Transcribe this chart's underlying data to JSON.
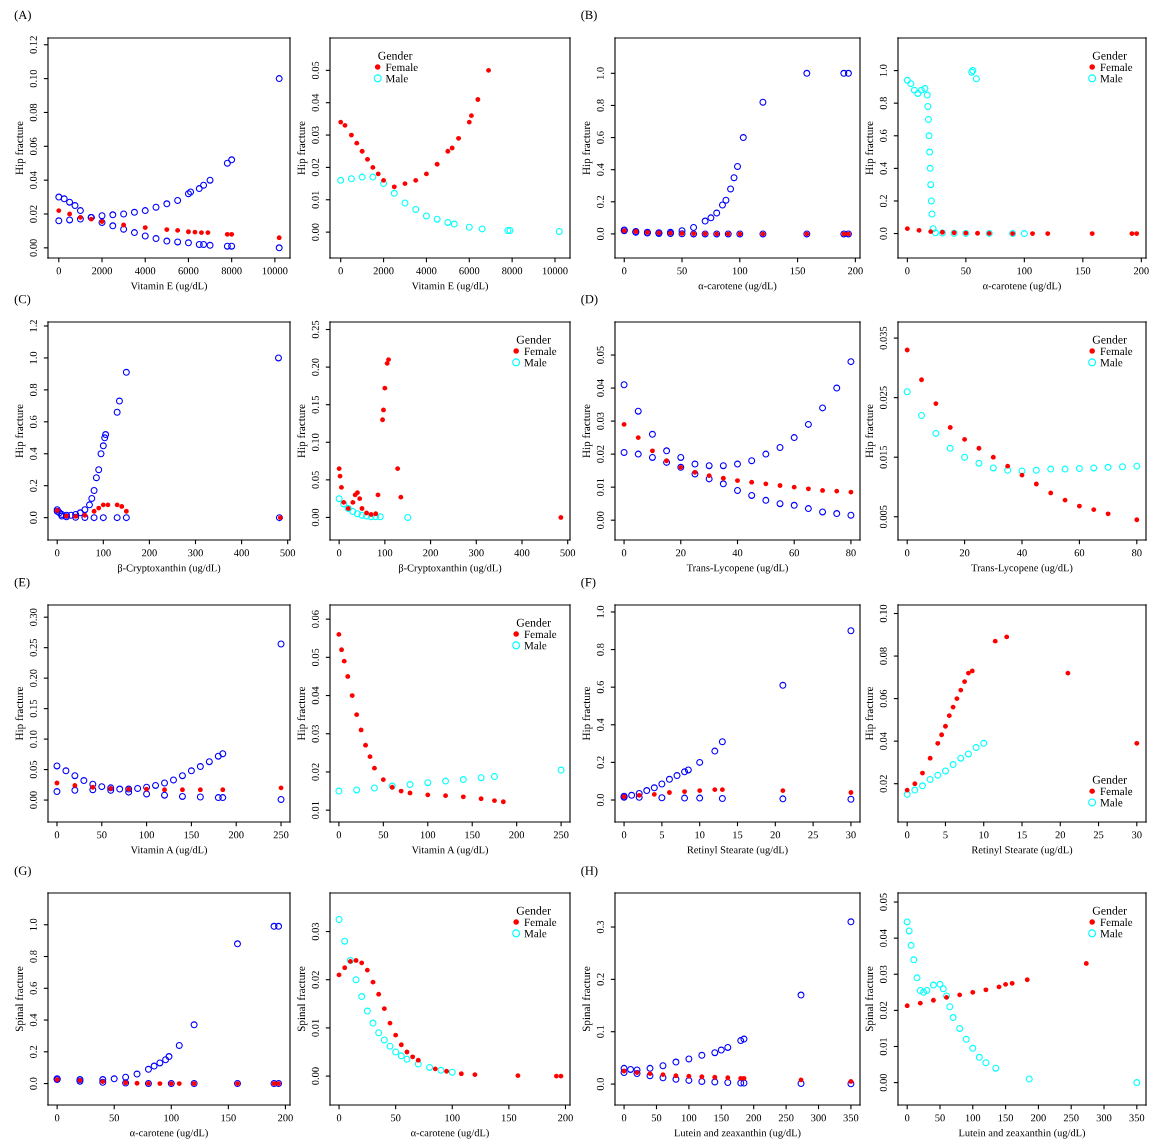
{
  "chart_data": [
    {
      "type": "scatter",
      "annotations": [
        "(A)"
      ],
      "xlabel": "Vitamin E (ug/dL)",
      "ylabel": "Hip fracture",
      "xlim": [
        -500,
        10700
      ],
      "xticks": [
        0,
        2000,
        4000,
        6000,
        8000,
        10000
      ],
      "ylim": [
        -0.006,
        0.124
      ],
      "yticks": [
        {
          "value": 0,
          "label": "0.00"
        },
        0.02,
        0.04,
        0.06,
        0.08,
        {
          "value": 0.1,
          "label": "0.10"
        },
        {
          "value": 0.12,
          "label": "0.12"
        }
      ],
      "marker": "circle",
      "legend": false,
      "series": [
        {
          "color": "#ff0000",
          "x": [
            0,
            500,
            1000,
            1500,
            2000,
            3000,
            4000,
            5000,
            5500,
            6000,
            6300,
            6600,
            6900,
            7800,
            8000,
            10200
          ],
          "values": [
            0.022,
            0.02,
            0.018,
            0.017,
            0.0155,
            0.0135,
            0.012,
            0.0108,
            0.0103,
            0.0095,
            0.0093,
            0.009,
            0.009,
            0.008,
            0.008,
            0.006
          ]
        },
        {
          "color": "#0000ff",
          "x": [
            0,
            500,
            1000,
            1500,
            2000,
            2500,
            3000,
            3500,
            4000,
            4500,
            5000,
            5500,
            6000,
            6100,
            6500,
            6700,
            7000,
            7800,
            8000,
            10200
          ],
          "values": [
            0.016,
            0.0165,
            0.017,
            0.018,
            0.019,
            0.0195,
            0.02,
            0.021,
            0.022,
            0.024,
            0.026,
            0.028,
            0.032,
            0.033,
            0.035,
            0.037,
            0.04,
            0.05,
            0.052,
            0.1
          ]
        },
        {
          "color": "#0000ff",
          "x": [
            0,
            250,
            500,
            750,
            1000,
            1500,
            2000,
            2500,
            3000,
            3500,
            4000,
            4500,
            5000,
            5500,
            6000,
            6500,
            6700,
            7000,
            7800,
            8000,
            10200
          ],
          "values": [
            0.03,
            0.029,
            0.027,
            0.025,
            0.022,
            0.018,
            0.015,
            0.013,
            0.011,
            0.009,
            0.007,
            0.0055,
            0.004,
            0.0035,
            0.003,
            0.002,
            0.002,
            0.0015,
            0.001,
            0.001,
            0.0
          ]
        }
      ]
    },
    {
      "type": "scatter",
      "xlabel": "Vitamin E (ug/dL)",
      "ylabel": "Hip fracture",
      "xlim": [
        -500,
        10700
      ],
      "xticks": [
        0,
        2000,
        4000,
        6000,
        8000,
        10000
      ],
      "ylim": [
        -0.008,
        0.06
      ],
      "yticks": [
        {
          "value": 0,
          "label": "0.00"
        },
        0.01,
        0.02,
        0.03,
        0.04,
        0.05
      ],
      "marker": "circle",
      "legend": "top left",
      "legend_title": "Gender",
      "series": [
        {
          "name": "Female",
          "color": "#ff0000",
          "x": [
            0,
            200,
            500,
            750,
            1000,
            1250,
            1500,
            1750,
            2000,
            2500,
            3000,
            3500,
            4000,
            4500,
            5000,
            5200,
            5500,
            6000,
            6100,
            6400,
            6900
          ],
          "values": [
            0.034,
            0.033,
            0.03,
            0.0275,
            0.025,
            0.0225,
            0.02,
            0.018,
            0.016,
            0.014,
            0.015,
            0.016,
            0.018,
            0.021,
            0.025,
            0.026,
            0.029,
            0.034,
            0.036,
            0.041,
            0.05
          ]
        },
        {
          "name": "Male",
          "color": "#00ffff",
          "x": [
            0,
            500,
            1000,
            1500,
            2000,
            2500,
            3000,
            3500,
            4000,
            4500,
            5000,
            5300,
            6000,
            6600,
            7800,
            7900,
            10200
          ],
          "values": [
            0.016,
            0.0165,
            0.017,
            0.017,
            0.015,
            0.012,
            0.009,
            0.007,
            0.005,
            0.004,
            0.003,
            0.0025,
            0.0015,
            0.001,
            0.0005,
            0.0005,
            0.0002
          ]
        }
      ]
    },
    {
      "type": "scatter",
      "annotations": [
        "(B)"
      ],
      "xlabel": "α-carotene (ug/dL)",
      "ylabel": "Hip fracture",
      "xlim": [
        -8,
        204
      ],
      "xticks": [
        0,
        50,
        100,
        150,
        200
      ],
      "ylim": [
        -0.15,
        1.22
      ],
      "yticks": [
        {
          "value": 0,
          "label": "0.0"
        },
        0.2,
        0.4,
        0.6,
        0.8,
        {
          "value": 1,
          "label": "1.0"
        }
      ],
      "marker": "circle",
      "legend": false,
      "series": [
        {
          "color": "#ff0000",
          "x": [
            0,
            10,
            20,
            30,
            40,
            50,
            60,
            70,
            80,
            90,
            100,
            120,
            158,
            190,
            194
          ],
          "values": [
            0.02,
            0.015,
            0.01,
            0.007,
            0.005,
            0.003,
            0.002,
            0.001,
            0.0,
            0.0,
            0.0,
            0.0,
            0.0,
            0.0,
            0.0
          ]
        },
        {
          "color": "#0000ff",
          "x": [
            0,
            10,
            20,
            30,
            40,
            50,
            60,
            70,
            75,
            80,
            85,
            88,
            92,
            95,
            98,
            103,
            120,
            158,
            190,
            194
          ],
          "values": [
            0.025,
            0.015,
            0.01,
            0.008,
            0.01,
            0.02,
            0.04,
            0.08,
            0.1,
            0.13,
            0.18,
            0.21,
            0.28,
            0.35,
            0.42,
            0.6,
            0.82,
            1.0,
            1.0,
            1.0
          ]
        },
        {
          "color": "#0000ff",
          "x": [
            0,
            10,
            20,
            30,
            40,
            50,
            60,
            70,
            80,
            90,
            100,
            120,
            158,
            190,
            194
          ],
          "values": [
            0.02,
            0.01,
            0.006,
            0.003,
            0.002,
            0.001,
            0.0,
            0.0,
            0.0,
            0.0,
            0.0,
            0.0,
            0.0,
            0.0,
            0.0
          ]
        }
      ]
    },
    {
      "type": "scatter",
      "xlabel": "α-carotene (ug/dL)",
      "ylabel": "Hip fracture",
      "xlim": [
        -8,
        204
      ],
      "xticks": [
        0,
        50,
        100,
        150,
        200
      ],
      "ylim": [
        -0.15,
        1.2
      ],
      "yticks": [
        {
          "value": 0,
          "label": "0.0"
        },
        0.2,
        0.4,
        0.6,
        0.8,
        {
          "value": 1,
          "label": "1.0"
        }
      ],
      "marker": "circle",
      "legend": "top right",
      "legend_title": "Gender",
      "series": [
        {
          "name": "Female",
          "color": "#ff0000",
          "x": [
            0,
            10,
            20,
            30,
            40,
            50,
            60,
            70,
            90,
            107,
            120,
            158,
            192,
            196
          ],
          "values": [
            0.03,
            0.02,
            0.012,
            0.008,
            0.005,
            0.003,
            0.002,
            0.001,
            0.0,
            0.0,
            0.0,
            0.0,
            0.0,
            0.0
          ]
        },
        {
          "name": "Male",
          "color": "#00ffff",
          "x": [
            0,
            3,
            6,
            9,
            12,
            15,
            17,
            17.5,
            18,
            18.5,
            19,
            19.5,
            20,
            20.5,
            21,
            22,
            24,
            30,
            40,
            50,
            55,
            56,
            59,
            70,
            90,
            100
          ],
          "values": [
            0.94,
            0.92,
            0.88,
            0.86,
            0.88,
            0.89,
            0.85,
            0.78,
            0.7,
            0.6,
            0.5,
            0.4,
            0.3,
            0.2,
            0.12,
            0.03,
            0.005,
            0.003,
            0.002,
            0.001,
            0.99,
            1.0,
            0.95,
            0.001,
            0.0,
            0.0
          ]
        }
      ]
    },
    {
      "type": "scatter",
      "annotations": [
        "(C)"
      ],
      "xlabel": "β-Cryptoxanthin (ug/dL)",
      "ylabel": "Hip fracture",
      "xlim": [
        -20,
        505
      ],
      "xticks": [
        0,
        100,
        200,
        300,
        400,
        500
      ],
      "ylim": [
        -0.14,
        1.225
      ],
      "yticks": [
        {
          "value": 0,
          "label": "0.0"
        },
        0.2,
        0.4,
        0.6,
        0.8,
        {
          "value": 1,
          "label": "1.0"
        },
        1.2
      ],
      "marker": "circle",
      "legend": false,
      "series": [
        {
          "color": "#ff0000",
          "x": [
            0,
            20,
            40,
            60,
            80,
            90,
            100,
            110,
            130,
            140,
            150,
            484
          ],
          "values": [
            0.045,
            0.01,
            0.008,
            0.015,
            0.04,
            0.06,
            0.08,
            0.08,
            0.08,
            0.07,
            0.04,
            0.0
          ]
        },
        {
          "color": "#0000ff",
          "x": [
            0,
            5,
            10,
            20,
            30,
            40,
            50,
            60,
            70,
            75,
            80,
            85,
            90,
            95,
            100,
            103,
            105,
            130,
            135,
            150,
            480
          ],
          "values": [
            0.05,
            0.03,
            0.02,
            0.015,
            0.015,
            0.02,
            0.03,
            0.05,
            0.08,
            0.12,
            0.17,
            0.25,
            0.3,
            0.4,
            0.45,
            0.5,
            0.52,
            0.66,
            0.73,
            0.91,
            1.0
          ]
        },
        {
          "color": "#0000ff",
          "x": [
            0,
            10,
            20,
            40,
            60,
            80,
            100,
            130,
            150,
            482
          ],
          "values": [
            0.04,
            0.01,
            0.005,
            0.002,
            0.001,
            0.0,
            0.0,
            0.0,
            0.0,
            0.0
          ]
        }
      ]
    },
    {
      "type": "scatter",
      "xlabel": "β-Cryptoxanthin (ug/dL)",
      "ylabel": "Hip fracture",
      "xlim": [
        -20,
        505
      ],
      "xticks": [
        0,
        100,
        200,
        300,
        400,
        500
      ],
      "ylim": [
        -0.03,
        0.26
      ],
      "yticks": [
        {
          "value": 0,
          "label": "0.00"
        },
        0.05,
        {
          "value": 0.1,
          "label": "0.10"
        },
        0.15,
        {
          "value": 0.2,
          "label": "0.20"
        },
        0.25
      ],
      "marker": "circle",
      "legend": "top right",
      "legend_title": "Gender",
      "series": [
        {
          "name": "Female",
          "color": "#ff0000",
          "x": [
            0,
            2,
            5,
            10,
            20,
            30,
            35,
            40,
            45,
            50,
            60,
            70,
            80,
            85,
            95,
            97,
            100,
            105,
            108,
            128,
            135,
            485
          ],
          "values": [
            0.065,
            0.055,
            0.04,
            0.02,
            0.012,
            0.02,
            0.03,
            0.033,
            0.025,
            0.012,
            0.006,
            0.004,
            0.005,
            0.03,
            0.13,
            0.143,
            0.172,
            0.205,
            0.21,
            0.065,
            0.027,
            0.0
          ]
        },
        {
          "name": "Male",
          "color": "#00ffff",
          "x": [
            0,
            10,
            20,
            30,
            40,
            50,
            60,
            70,
            80,
            90,
            150
          ],
          "values": [
            0.025,
            0.018,
            0.012,
            0.008,
            0.005,
            0.003,
            0.002,
            0.001,
            0.001,
            0.001,
            0.0
          ]
        }
      ]
    },
    {
      "type": "scatter",
      "annotations": [
        "(D)"
      ],
      "xlabel": "Trans-Lycopene (ug/dL)",
      "ylabel": "Hip fracture",
      "xlim": [
        -3.2,
        83.2
      ],
      "xticks": [
        0,
        20,
        40,
        60,
        80
      ],
      "ylim": [
        -0.006,
        0.06
      ],
      "yticks": [
        {
          "value": 0,
          "label": "0.00"
        },
        0.01,
        0.02,
        0.03,
        0.04,
        0.05
      ],
      "marker": "circle",
      "legend": false,
      "series": [
        {
          "color": "#ff0000",
          "x": [
            0,
            5,
            10,
            15,
            20,
            25,
            30,
            35,
            40,
            45,
            50,
            55,
            60,
            65,
            70,
            75,
            80
          ],
          "values": [
            0.029,
            0.025,
            0.021,
            0.018,
            0.016,
            0.0145,
            0.0135,
            0.0127,
            0.012,
            0.0115,
            0.011,
            0.0105,
            0.01,
            0.0095,
            0.009,
            0.0088,
            0.0085
          ]
        },
        {
          "color": "#0000ff",
          "x": [
            0,
            5,
            10,
            15,
            20,
            25,
            30,
            35,
            40,
            45,
            50,
            55,
            60,
            65,
            70,
            75,
            80
          ],
          "values": [
            0.041,
            0.033,
            0.026,
            0.021,
            0.019,
            0.017,
            0.0165,
            0.0165,
            0.017,
            0.018,
            0.02,
            0.022,
            0.025,
            0.029,
            0.034,
            0.04,
            0.048
          ]
        },
        {
          "color": "#0000ff",
          "x": [
            0,
            5,
            10,
            15,
            20,
            25,
            30,
            35,
            40,
            45,
            50,
            55,
            60,
            65,
            70,
            75,
            80
          ],
          "values": [
            0.0205,
            0.02,
            0.019,
            0.0175,
            0.016,
            0.014,
            0.0125,
            0.011,
            0.009,
            0.0075,
            0.006,
            0.005,
            0.0045,
            0.0035,
            0.0025,
            0.002,
            0.0015
          ]
        }
      ]
    },
    {
      "type": "scatter",
      "xlabel": "Trans-Lycopene (ug/dL)",
      "ylabel": "Hip fracture",
      "xlim": [
        -3.2,
        83.2
      ],
      "xticks": [
        0,
        20,
        40,
        60,
        80
      ],
      "ylim": [
        0.0011,
        0.0377
      ],
      "yticks": [
        0.005,
        0.015,
        0.025,
        0.035
      ],
      "marker": "circle",
      "legend": "top right",
      "legend_title": "Gender",
      "series": [
        {
          "name": "Female",
          "color": "#ff0000",
          "x": [
            0,
            5,
            10,
            15,
            20,
            25,
            30,
            35,
            40,
            45,
            50,
            55,
            60,
            65,
            70,
            80
          ],
          "values": [
            0.033,
            0.028,
            0.024,
            0.02,
            0.018,
            0.0165,
            0.015,
            0.0135,
            0.012,
            0.0105,
            0.009,
            0.0078,
            0.0068,
            0.0062,
            0.0055,
            0.0045
          ]
        },
        {
          "name": "Male",
          "color": "#00ffff",
          "x": [
            0,
            5,
            10,
            15,
            20,
            25,
            30,
            35,
            40,
            45,
            50,
            55,
            60,
            65,
            70,
            75,
            80
          ],
          "values": [
            0.026,
            0.022,
            0.019,
            0.0165,
            0.015,
            0.014,
            0.0132,
            0.0128,
            0.0127,
            0.0128,
            0.013,
            0.013,
            0.0131,
            0.0132,
            0.0133,
            0.0134,
            0.0135
          ]
        }
      ]
    },
    {
      "type": "scatter",
      "annotations": [
        "(E)"
      ],
      "xlabel": "Vitamin A (ug/dL)",
      "ylabel": "Hip fracture",
      "xlim": [
        -10,
        260
      ],
      "xticks": [
        0,
        50,
        100,
        150,
        200,
        250
      ],
      "ylim": [
        -0.036,
        0.32
      ],
      "yticks": [
        {
          "value": 0,
          "label": "0.00"
        },
        0.05,
        {
          "value": 0.1,
          "label": "0.10"
        },
        0.15,
        {
          "value": 0.2,
          "label": "0.20"
        },
        0.25,
        {
          "value": 0.3,
          "label": "0.30"
        }
      ],
      "marker": "circle",
      "legend": false,
      "series": [
        {
          "color": "#ff0000",
          "x": [
            0,
            20,
            40,
            60,
            80,
            100,
            120,
            140,
            160,
            185,
            250
          ],
          "values": [
            0.028,
            0.024,
            0.021,
            0.019,
            0.018,
            0.018,
            0.017,
            0.017,
            0.017,
            0.017,
            0.02
          ]
        },
        {
          "color": "#0000ff",
          "x": [
            0,
            10,
            20,
            30,
            40,
            50,
            60,
            70,
            80,
            90,
            100,
            110,
            120,
            130,
            140,
            150,
            160,
            170,
            180,
            185,
            250
          ],
          "values": [
            0.056,
            0.048,
            0.04,
            0.032,
            0.026,
            0.022,
            0.02,
            0.018,
            0.018,
            0.019,
            0.021,
            0.024,
            0.028,
            0.033,
            0.04,
            0.048,
            0.055,
            0.063,
            0.072,
            0.076,
            0.256
          ]
        },
        {
          "color": "#0000ff",
          "x": [
            0,
            20,
            40,
            60,
            80,
            100,
            120,
            140,
            160,
            180,
            185,
            250
          ],
          "values": [
            0.014,
            0.016,
            0.017,
            0.016,
            0.013,
            0.01,
            0.008,
            0.006,
            0.005,
            0.004,
            0.004,
            0.001
          ]
        }
      ]
    },
    {
      "type": "scatter",
      "xlabel": "Vitamin A (ug/dL)",
      "ylabel": "Hip fracture",
      "xlim": [
        -10,
        260
      ],
      "xticks": [
        0,
        50,
        100,
        150,
        200,
        250
      ],
      "ylim": [
        0.0069,
        0.0637
      ],
      "yticks": [
        0.01,
        0.02,
        0.03,
        0.04,
        0.05,
        0.06
      ],
      "marker": "circle",
      "legend": "top right",
      "legend_title": "Gender",
      "series": [
        {
          "name": "Female",
          "color": "#ff0000",
          "x": [
            0,
            3,
            6,
            10,
            15,
            20,
            25,
            30,
            35,
            40,
            50,
            60,
            70,
            80,
            100,
            120,
            140,
            160,
            175,
            185
          ],
          "values": [
            0.056,
            0.052,
            0.049,
            0.045,
            0.04,
            0.035,
            0.031,
            0.027,
            0.024,
            0.021,
            0.018,
            0.016,
            0.015,
            0.0145,
            0.014,
            0.0138,
            0.0135,
            0.013,
            0.0125,
            0.0122
          ]
        },
        {
          "name": "Male",
          "color": "#00ffff",
          "x": [
            0,
            20,
            40,
            60,
            80,
            100,
            120,
            140,
            160,
            175,
            250
          ],
          "values": [
            0.015,
            0.0153,
            0.0158,
            0.0163,
            0.0167,
            0.0172,
            0.0176,
            0.018,
            0.0185,
            0.0188,
            0.0205
          ]
        }
      ]
    },
    {
      "type": "scatter",
      "annotations": [
        "(F)"
      ],
      "xlabel": "Retinyl Stearate (ug/dL)",
      "ylabel": "Hip fracture",
      "xlim": [
        -1.2,
        31.2
      ],
      "xticks": [
        0,
        5,
        10,
        15,
        20,
        25,
        30
      ],
      "ylim": [
        -0.117,
        1.037
      ],
      "yticks": [
        {
          "value": 0,
          "label": "0.0"
        },
        0.2,
        0.4,
        0.6,
        0.8,
        {
          "value": 1,
          "label": "1.0"
        }
      ],
      "marker": "circle",
      "legend": false,
      "series": [
        {
          "color": "#ff0000",
          "x": [
            0,
            2,
            4,
            6,
            8,
            10,
            12,
            13,
            21,
            30
          ],
          "values": [
            0.018,
            0.025,
            0.03,
            0.04,
            0.045,
            0.05,
            0.055,
            0.055,
            0.05,
            0.04
          ]
        },
        {
          "color": "#0000ff",
          "x": [
            0,
            1,
            2,
            3,
            4,
            5,
            6,
            7,
            8,
            8.5,
            10,
            12,
            13,
            21,
            30
          ],
          "values": [
            0.02,
            0.025,
            0.035,
            0.05,
            0.065,
            0.085,
            0.11,
            0.13,
            0.15,
            0.16,
            0.2,
            0.26,
            0.31,
            0.61,
            0.9
          ]
        },
        {
          "color": "#0000ff",
          "x": [
            0,
            2,
            5,
            8,
            10,
            13,
            21,
            30
          ],
          "values": [
            0.015,
            0.014,
            0.012,
            0.01,
            0.01,
            0.008,
            0.006,
            0.004
          ]
        }
      ]
    },
    {
      "type": "scatter",
      "xlabel": "Retinyl Stearate (ug/dL)",
      "ylabel": "Hip fracture",
      "xlim": [
        -1.2,
        31.2
      ],
      "xticks": [
        0,
        5,
        10,
        15,
        20,
        25,
        30
      ],
      "ylim": [
        0.002,
        0.104
      ],
      "yticks": [
        0.02,
        0.04,
        0.06,
        0.08,
        {
          "value": 0.1,
          "label": "0.10"
        }
      ],
      "marker": "circle",
      "legend": "bottom right",
      "legend_title": "Gender",
      "series": [
        {
          "name": "Female",
          "color": "#ff0000",
          "x": [
            0,
            1,
            2,
            3,
            4,
            4.5,
            5,
            5.5,
            6,
            6.5,
            7,
            7.5,
            8,
            8.5,
            11.5,
            13,
            21,
            30
          ],
          "values": [
            0.017,
            0.02,
            0.025,
            0.032,
            0.039,
            0.043,
            0.047,
            0.052,
            0.056,
            0.06,
            0.064,
            0.068,
            0.072,
            0.073,
            0.087,
            0.089,
            0.072,
            0.039
          ]
        },
        {
          "name": "Male",
          "color": "#00ffff",
          "x": [
            0,
            1,
            2,
            3,
            4,
            5,
            6,
            7,
            8,
            9,
            10
          ],
          "values": [
            0.015,
            0.017,
            0.019,
            0.022,
            0.024,
            0.026,
            0.029,
            0.032,
            0.034,
            0.037,
            0.039
          ]
        }
      ]
    },
    {
      "type": "scatter",
      "annotations": [
        "(G)"
      ],
      "xlabel": "α-carotene (ug/dL)",
      "ylabel": "Spinal fracture",
      "xlim": [
        -8,
        204
      ],
      "xticks": [
        0,
        50,
        100,
        150,
        200
      ],
      "ylim": [
        -0.135,
        1.2
      ],
      "yticks": [
        {
          "value": 0,
          "label": "0.0"
        },
        0.2,
        0.4,
        0.6,
        0.8,
        {
          "value": 1,
          "label": "1.0"
        }
      ],
      "marker": "circle",
      "legend": false,
      "series": [
        {
          "color": "#ff0000",
          "x": [
            0,
            20,
            40,
            60,
            70,
            80,
            90,
            100,
            107,
            120,
            158,
            190,
            194
          ],
          "values": [
            0.025,
            0.02,
            0.012,
            0.005,
            0.002,
            0.001,
            0.0,
            0.0,
            0.0,
            0.0,
            0.0,
            0.0,
            0.0
          ]
        },
        {
          "color": "#0000ff",
          "x": [
            0,
            20,
            40,
            50,
            60,
            70,
            80,
            85,
            90,
            95,
            98,
            107,
            120,
            158,
            190,
            194
          ],
          "values": [
            0.03,
            0.025,
            0.025,
            0.03,
            0.04,
            0.06,
            0.09,
            0.11,
            0.13,
            0.15,
            0.17,
            0.24,
            0.37,
            0.88,
            0.99,
            0.99
          ]
        },
        {
          "color": "#0000ff",
          "x": [
            0,
            20,
            40,
            60,
            80,
            100,
            120,
            158,
            190,
            194
          ],
          "values": [
            0.025,
            0.015,
            0.008,
            0.003,
            0.001,
            0.0,
            0.0,
            0.0,
            0.0,
            0.0
          ]
        }
      ]
    },
    {
      "type": "scatter",
      "xlabel": "α-carotene (ug/dL)",
      "ylabel": "Spinal fracture",
      "xlim": [
        -8,
        204
      ],
      "xticks": [
        0,
        50,
        100,
        150,
        200
      ],
      "ylim": [
        -0.006,
        0.038
      ],
      "yticks": [
        {
          "value": 0,
          "label": "0.00"
        },
        0.01,
        0.02,
        0.03
      ],
      "marker": "circle",
      "legend": "top right",
      "legend_title": "Gender",
      "series": [
        {
          "name": "Female",
          "color": "#ff0000",
          "x": [
            0,
            5,
            10,
            15,
            20,
            25,
            30,
            35,
            40,
            45,
            50,
            55,
            60,
            65,
            70,
            85,
            95,
            108,
            120,
            158,
            192,
            196
          ],
          "values": [
            0.021,
            0.0225,
            0.0238,
            0.024,
            0.0235,
            0.022,
            0.0195,
            0.017,
            0.014,
            0.011,
            0.0085,
            0.0065,
            0.005,
            0.004,
            0.0033,
            0.0015,
            0.001,
            0.0005,
            0.0003,
            0.0001,
            0.0,
            0.0
          ]
        },
        {
          "name": "Male",
          "color": "#00ffff",
          "x": [
            0,
            5,
            10,
            15,
            20,
            25,
            30,
            35,
            40,
            45,
            50,
            55,
            60,
            70,
            80,
            90,
            100
          ],
          "values": [
            0.0325,
            0.028,
            0.024,
            0.02,
            0.0165,
            0.0135,
            0.011,
            0.009,
            0.0075,
            0.0062,
            0.005,
            0.0042,
            0.0035,
            0.0025,
            0.0018,
            0.0012,
            0.0008
          ]
        }
      ]
    },
    {
      "type": "scatter",
      "annotations": [
        "(H)"
      ],
      "xlabel": "Lutein and zeaxanthin (ug/dL)",
      "ylabel": "Spinal fracture",
      "xlim": [
        -14,
        364
      ],
      "xticks": [
        0,
        50,
        100,
        150,
        200,
        250,
        300,
        350
      ],
      "ylim": [
        -0.04,
        0.365
      ],
      "yticks": [
        {
          "value": 0,
          "label": "0.0"
        },
        0.1,
        0.2,
        0.3
      ],
      "marker": "circle",
      "legend": false,
      "series": [
        {
          "color": "#ff0000",
          "x": [
            0,
            20,
            40,
            60,
            80,
            100,
            120,
            140,
            160,
            180,
            185,
            273,
            350
          ],
          "values": [
            0.025,
            0.022,
            0.02,
            0.018,
            0.016,
            0.015,
            0.014,
            0.013,
            0.012,
            0.011,
            0.011,
            0.008,
            0.005
          ]
        },
        {
          "color": "#0000ff",
          "x": [
            0,
            10,
            20,
            40,
            60,
            80,
            100,
            120,
            140,
            150,
            160,
            180,
            185,
            273,
            350
          ],
          "values": [
            0.03,
            0.028,
            0.027,
            0.03,
            0.035,
            0.042,
            0.048,
            0.055,
            0.06,
            0.065,
            0.07,
            0.083,
            0.086,
            0.17,
            0.31
          ]
        },
        {
          "color": "#0000ff",
          "x": [
            0,
            20,
            40,
            60,
            80,
            100,
            120,
            140,
            160,
            180,
            185,
            273,
            350
          ],
          "values": [
            0.022,
            0.02,
            0.016,
            0.012,
            0.009,
            0.007,
            0.005,
            0.004,
            0.003,
            0.002,
            0.002,
            0.001,
            0.0005
          ]
        }
      ]
    },
    {
      "type": "scatter",
      "xlabel": "Lutein and zeaxanthin (ug/dL)",
      "ylabel": "Spinal fracture",
      "xlim": [
        -14,
        364
      ],
      "xticks": [
        0,
        50,
        100,
        150,
        200,
        250,
        300,
        350
      ],
      "ylim": [
        -0.0062,
        0.0525
      ],
      "yticks": [
        {
          "value": 0,
          "label": "0.00"
        },
        0.01,
        0.02,
        0.03,
        0.04,
        0.05
      ],
      "marker": "circle",
      "legend": "top right",
      "legend_title": "Gender",
      "series": [
        {
          "name": "Female",
          "color": "#ff0000",
          "x": [
            0,
            20,
            40,
            60,
            80,
            100,
            120,
            140,
            150,
            160,
            183,
            273
          ],
          "values": [
            0.0213,
            0.022,
            0.0228,
            0.0236,
            0.0243,
            0.025,
            0.0257,
            0.0265,
            0.0272,
            0.0275,
            0.0285,
            0.033
          ]
        },
        {
          "name": "Male",
          "color": "#00ffff",
          "x": [
            0,
            3,
            6,
            10,
            15,
            20,
            25,
            30,
            40,
            50,
            55,
            60,
            65,
            70,
            80,
            90,
            100,
            110,
            120,
            135,
            186,
            350
          ],
          "values": [
            0.0445,
            0.042,
            0.038,
            0.034,
            0.029,
            0.0255,
            0.025,
            0.0255,
            0.027,
            0.0272,
            0.026,
            0.024,
            0.021,
            0.018,
            0.015,
            0.012,
            0.0095,
            0.007,
            0.0055,
            0.004,
            0.001,
            0.0
          ]
        }
      ]
    }
  ]
}
